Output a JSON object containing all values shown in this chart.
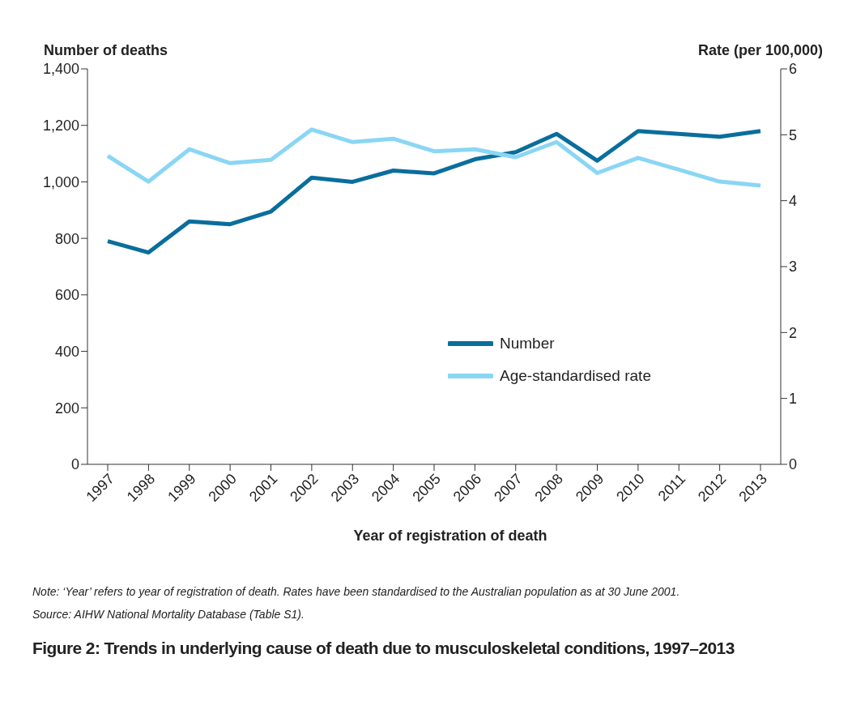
{
  "chart_data": {
    "type": "line",
    "title": "Figure 2: Trends in underlying cause of death due to musculoskeletal conditions, 1997–2013",
    "xlabel": "Year of registration of death",
    "ylabel": "Number of deaths",
    "y2label": "Rate (per 100,000)",
    "categories": [
      "1997",
      "1998",
      "1999",
      "2000",
      "2001",
      "2002",
      "2003",
      "2004",
      "2005",
      "2006",
      "2007",
      "2008",
      "2009",
      "2010",
      "2011",
      "2012",
      "2013"
    ],
    "series": [
      {
        "name": "Number",
        "color": "#0a6e9c",
        "values": [
          790,
          750,
          860,
          850,
          895,
          1015,
          1000,
          1040,
          1030,
          1080,
          1105,
          1170,
          1075,
          1180,
          1170,
          1160,
          1180
        ]
      },
      {
        "name": "Age-standardised rate",
        "color": "#8ad6f4",
        "axis": "y2",
        "values": [
          4.68,
          4.29,
          4.78,
          4.57,
          4.62,
          5.08,
          4.89,
          4.94,
          4.75,
          4.78,
          4.66,
          4.89,
          4.42,
          4.65,
          4.47,
          4.29,
          4.23
        ]
      }
    ],
    "ylim": [
      0,
      1400
    ],
    "yticks": [
      0,
      {
        "value": 200,
        "label": "200"
      },
      {
        "value": 400,
        "label": "400"
      },
      {
        "value": 600,
        "label": "600"
      },
      {
        "value": 800,
        "label": "800"
      },
      {
        "value": 1000,
        "label": "1,000"
      },
      {
        "value": 1200,
        "label": "1,200"
      },
      {
        "value": 1400,
        "label": "1,400"
      }
    ],
    "y2lim": [
      0,
      6
    ],
    "y2ticks": [
      0,
      1,
      2,
      3,
      4,
      5,
      6
    ],
    "grid": false,
    "legend": "bottom right",
    "marker": "none",
    "line_style": "solid",
    "annotations": [
      "Note: ‘Year’ refers to year of registration of death. Rates have been standardised to the Australian population as at 30 June 2001.",
      "Source: AIHW National Mortality Database (Table S1)."
    ]
  }
}
